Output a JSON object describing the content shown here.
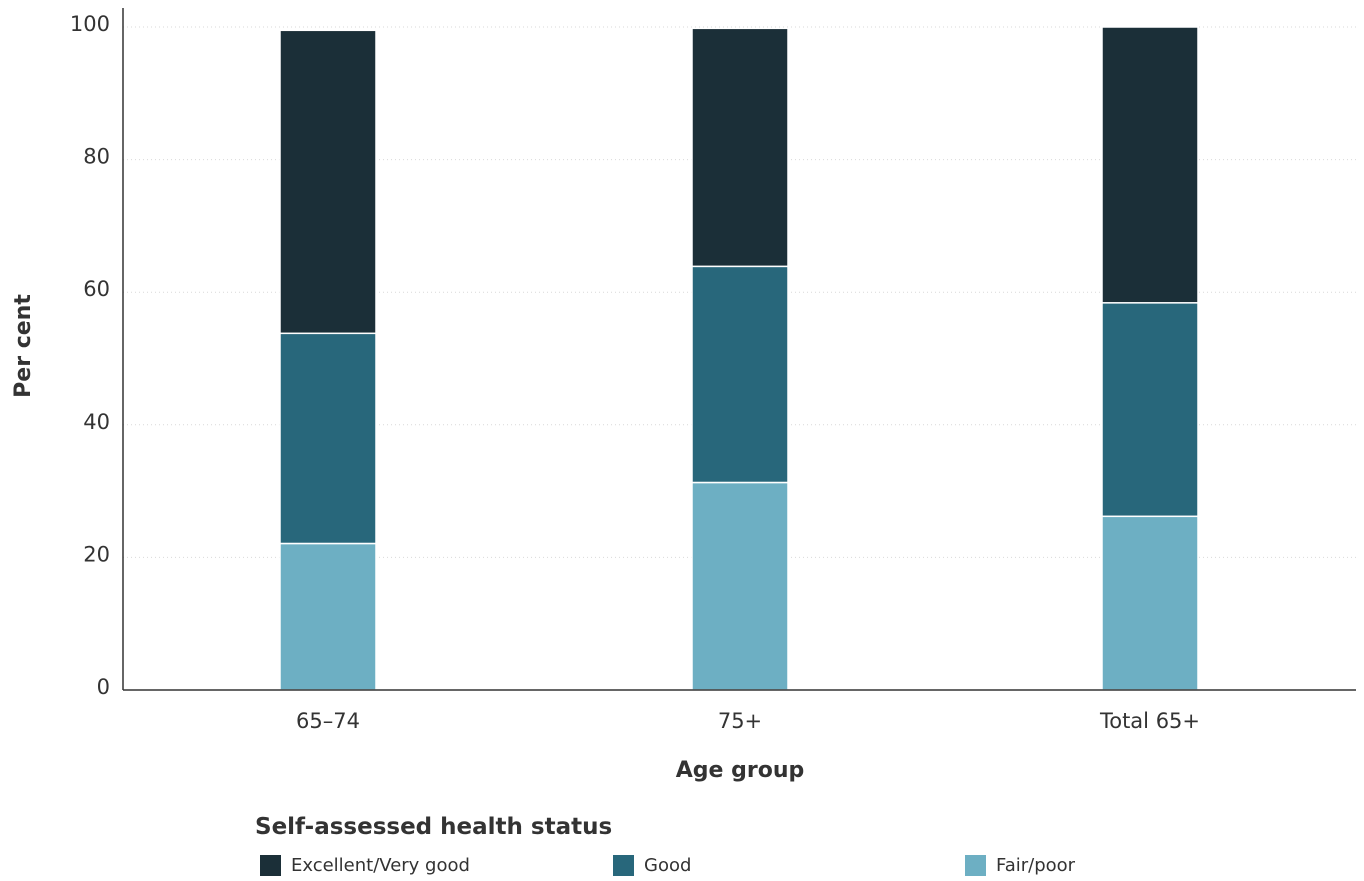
{
  "chart_data": {
    "type": "bar",
    "stacked": true,
    "categories": [
      "65–74",
      "75+",
      "Total 65+"
    ],
    "series": [
      {
        "name": "Fair/poor",
        "values": [
          22.1,
          31.3,
          26.2
        ],
        "color": "#6dafc3"
      },
      {
        "name": "Good",
        "values": [
          31.7,
          32.6,
          32.2
        ],
        "color": "#28677b"
      },
      {
        "name": "Excellent/Very good",
        "values": [
          45.7,
          35.9,
          41.6
        ],
        "color": "#1b2f38"
      }
    ],
    "xlabel": "Age group",
    "ylabel": "Per cent",
    "ylim": [
      0,
      100
    ],
    "yticks": [
      "0",
      "20",
      "40",
      "60",
      "80",
      "100"
    ],
    "grid": true,
    "legend": {
      "title": "Self-assessed health status",
      "position": "bottom",
      "items": [
        "Excellent/Very good",
        "Good",
        "Fair/poor"
      ]
    }
  }
}
